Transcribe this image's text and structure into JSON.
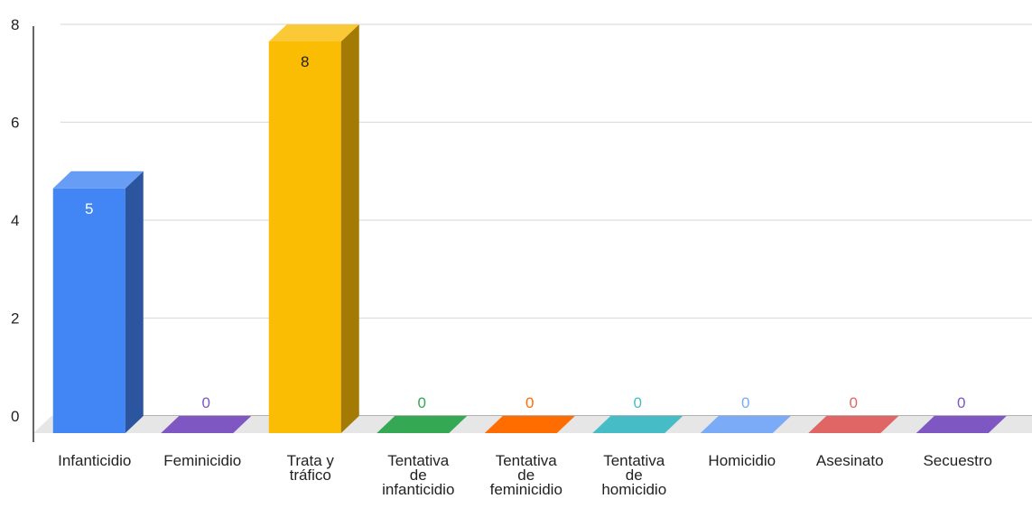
{
  "chart_data": {
    "type": "bar",
    "style": "3d",
    "categories": [
      [
        "Infanticidio"
      ],
      [
        "Feminicidio"
      ],
      [
        "Trata y",
        "tráfico"
      ],
      [
        "Tentativa",
        "de",
        "infanticidio"
      ],
      [
        "Tentativa",
        "de",
        "feminicidio"
      ],
      [
        "Tentativa",
        "de",
        "homicidio"
      ],
      [
        "Homicidio"
      ],
      [
        "Asesinato"
      ],
      [
        "Secuestro"
      ]
    ],
    "values": [
      5,
      0,
      8,
      0,
      0,
      0,
      0,
      0,
      0
    ],
    "value_labels": [
      "5",
      "0",
      "8",
      "0",
      "0",
      "0",
      "0",
      "0",
      "0"
    ],
    "colors": [
      "#4285f4",
      "#7e57c2",
      "#fbbc04",
      "#34a853",
      "#ff6d01",
      "#46bdc6",
      "#7baaf7",
      "#e06666",
      "#7e57c2"
    ],
    "yticks": [
      0,
      2,
      4,
      6,
      8
    ],
    "ylim": [
      0,
      8
    ],
    "grid": true,
    "legend": "none",
    "title": "",
    "xlabel": "",
    "ylabel": ""
  }
}
